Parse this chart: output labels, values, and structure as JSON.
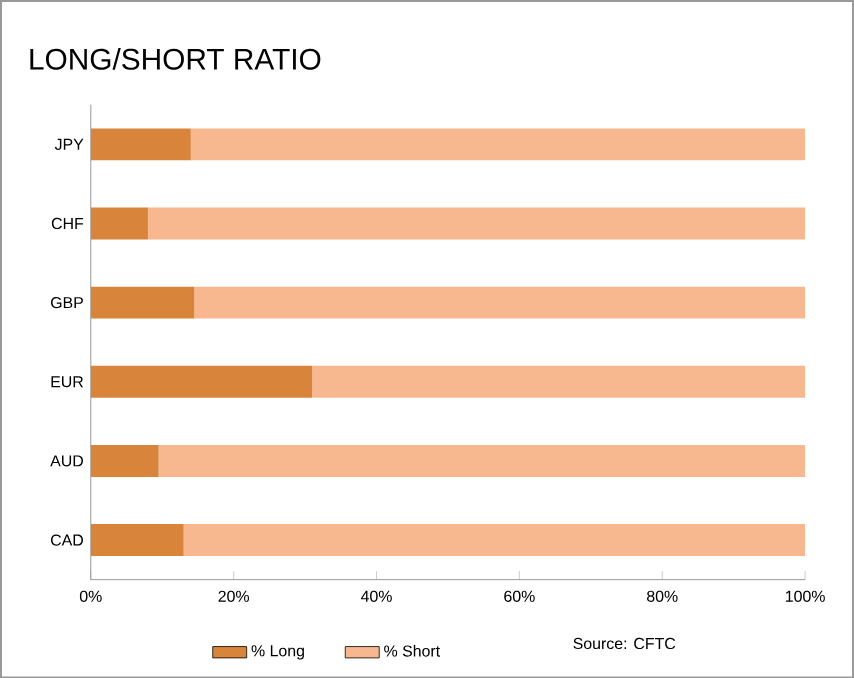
{
  "chart_data": {
    "type": "bar",
    "orientation": "horizontal",
    "stacked": true,
    "title": "LONG/SHORT RATIO",
    "categories": [
      "JPY",
      "CHF",
      "GBP",
      "EUR",
      "AUD",
      "CAD"
    ],
    "series": [
      {
        "name": "% Long",
        "color": "#d9843b",
        "values": [
          14,
          8,
          14.5,
          31,
          9.5,
          13
        ]
      },
      {
        "name": "% Short",
        "color": "#f8b88f",
        "values": [
          86,
          92,
          85.5,
          69,
          90.5,
          87
        ]
      }
    ],
    "xlim": [
      0,
      100
    ],
    "xticks": [
      {
        "value": 0,
        "label": "0%"
      },
      {
        "value": 20,
        "label": "20%"
      },
      {
        "value": 40,
        "label": "40%"
      },
      {
        "value": 60,
        "label": "60%"
      },
      {
        "value": 80,
        "label": "80%"
      },
      {
        "value": 100,
        "label": "100%"
      }
    ],
    "legend": "bottom",
    "grid": false,
    "annotations": [
      "Source: CFTC"
    ]
  }
}
